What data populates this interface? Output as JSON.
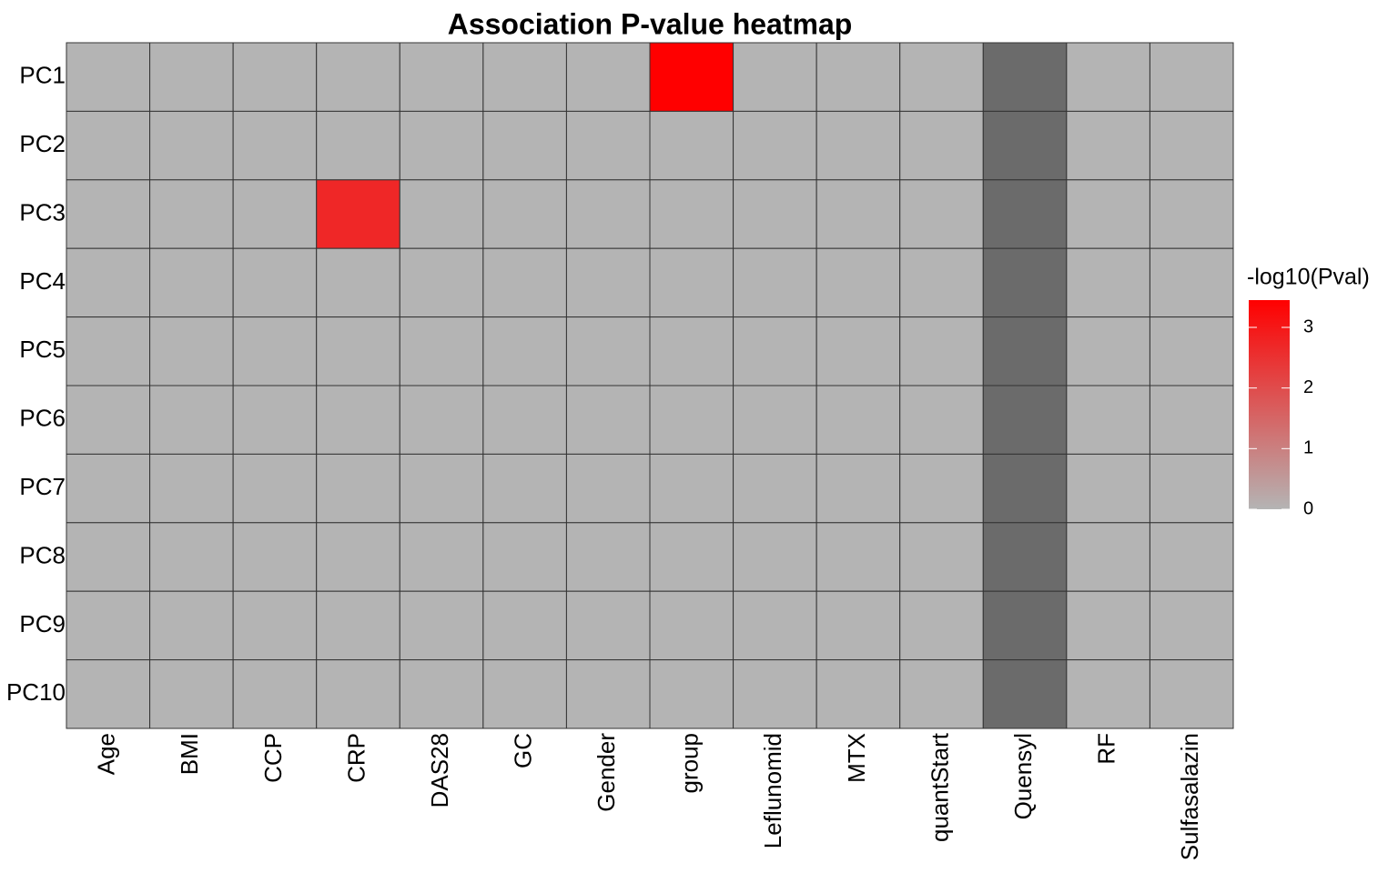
{
  "chart_data": {
    "type": "heatmap",
    "title": "Association P-value heatmap",
    "x": [
      "Age",
      "BMI",
      "CCP",
      "CRP",
      "DAS28",
      "GC",
      "Gender",
      "group",
      "Leflunomid",
      "MTX",
      "quantStart",
      "Quensyl",
      "RF",
      "Sulfasalazin"
    ],
    "y": [
      "PC1",
      "PC2",
      "PC3",
      "PC4",
      "PC5",
      "PC6",
      "PC7",
      "PC8",
      "PC9",
      "PC10"
    ],
    "values": [
      [
        0,
        0,
        0,
        0,
        0,
        0,
        0,
        3.45,
        0,
        0,
        0,
        null,
        0,
        0
      ],
      [
        0,
        0,
        0,
        0,
        0,
        0,
        0,
        0,
        0,
        0,
        0,
        null,
        0,
        0
      ],
      [
        0,
        0,
        0,
        2.7,
        0,
        0,
        0,
        0,
        0,
        0,
        0,
        null,
        0,
        0
      ],
      [
        0,
        0,
        0,
        0,
        0,
        0,
        0,
        0,
        0,
        0,
        0,
        null,
        0,
        0
      ],
      [
        0,
        0,
        0,
        0,
        0,
        0,
        0,
        0,
        0,
        0,
        0,
        null,
        0,
        0
      ],
      [
        0,
        0,
        0,
        0,
        0,
        0,
        0,
        0,
        0,
        0,
        0,
        null,
        0,
        0
      ],
      [
        0,
        0,
        0,
        0,
        0,
        0,
        0,
        0,
        0,
        0,
        0,
        null,
        0,
        0
      ],
      [
        0,
        0,
        0,
        0,
        0,
        0,
        0,
        0,
        0,
        0,
        0,
        null,
        0,
        0
      ],
      [
        0,
        0,
        0,
        0,
        0,
        0,
        0,
        0,
        0,
        0,
        0,
        null,
        0,
        0
      ],
      [
        0,
        0,
        0,
        0,
        0,
        0,
        0,
        0,
        0,
        0,
        0,
        null,
        0,
        0
      ]
    ],
    "legend_title": "-log10(Pval)",
    "colorbar_lim": [
      0,
      3.45
    ],
    "colorbar_ticks": [
      0,
      1,
      2,
      3
    ],
    "low_color": "#b4b4b4",
    "high_color": "#ff0000",
    "na_color": "#6b6b6b"
  }
}
